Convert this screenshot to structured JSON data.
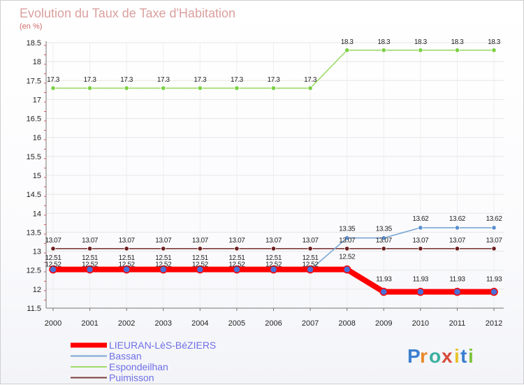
{
  "chart_data": {
    "type": "line",
    "title": "Evolution du Taux de Taxe d'Habitation",
    "subtitle": "(en %)",
    "x": [
      "2000",
      "2001",
      "2002",
      "2003",
      "2004",
      "2005",
      "2006",
      "2007",
      "2008",
      "2009",
      "2010",
      "2011",
      "2012"
    ],
    "ylim": [
      11.5,
      18.5
    ],
    "yticks": [
      "11.5",
      "12",
      "12.5",
      "13",
      "13.5",
      "14",
      "14.5",
      "15",
      "15.5",
      "16",
      "16.5",
      "17",
      "17.5",
      "18",
      "18.5"
    ],
    "series": [
      {
        "name": "LIEURAN-LèS-BéZIERS",
        "color": "#ff0000",
        "marker": "#4a6fd6",
        "values": [
          12.52,
          12.52,
          12.52,
          12.52,
          12.52,
          12.52,
          12.52,
          12.52,
          12.52,
          11.93,
          11.93,
          11.93,
          11.93
        ],
        "labels": [
          "12.52",
          "12.52",
          "12.52",
          "12.52",
          "12.52",
          "12.52",
          "12.52",
          "12.52",
          "12.52",
          "11.93",
          "11.93",
          "11.93",
          "11.93"
        ]
      },
      {
        "name": "Bassan",
        "color": "#7aa7d2",
        "marker": "#5b8ed0",
        "values": [
          12.51,
          12.51,
          12.51,
          12.51,
          12.51,
          12.51,
          12.51,
          12.51,
          13.35,
          13.35,
          13.62,
          13.62,
          13.62
        ],
        "labels": [
          "12.51",
          "12.51",
          "12.51",
          "12.51",
          "12.51",
          "12.51",
          "12.51",
          "12.51",
          "13.35",
          "13.35",
          "13.62",
          "13.62",
          "13.62"
        ]
      },
      {
        "name": "Espondeilhan",
        "color": "#9fdc6a",
        "marker": "#7ccf45",
        "values": [
          17.3,
          17.3,
          17.3,
          17.3,
          17.3,
          17.3,
          17.3,
          17.3,
          18.3,
          18.3,
          18.3,
          18.3,
          18.3
        ],
        "labels": [
          "17.3",
          "17.3",
          "17.3",
          "17.3",
          "17.3",
          "17.3",
          "17.3",
          "17.3",
          "18.3",
          "18.3",
          "18.3",
          "18.3",
          "18.3"
        ]
      },
      {
        "name": "Puimisson",
        "color": "#7d3b3b",
        "marker": "#6e2020",
        "values": [
          13.07,
          13.07,
          13.07,
          13.07,
          13.07,
          13.07,
          13.07,
          13.07,
          13.07,
          13.07,
          13.07,
          13.07,
          13.07
        ],
        "labels": [
          "13.07",
          "13.07",
          "13.07",
          "13.07",
          "13.07",
          "13.07",
          "13.07",
          "13.07",
          "13.07",
          "13.07",
          "13.07",
          "13.07",
          "13.07"
        ]
      }
    ],
    "legend_position": "bottom-left"
  },
  "logo": {
    "text": "Proxiti",
    "letters": [
      {
        "ch": "P",
        "color": "#3b7fd0"
      },
      {
        "ch": "r",
        "color": "#e8892b"
      },
      {
        "ch": "o",
        "color": "#3bb0a0"
      },
      {
        "ch": "x",
        "color": "#d64b3b"
      },
      {
        "ch": "i",
        "color": "#e8c22b"
      },
      {
        "ch": "t",
        "color": "#3b7fd0"
      },
      {
        "ch": "i",
        "color": "#7cc23b"
      }
    ]
  }
}
